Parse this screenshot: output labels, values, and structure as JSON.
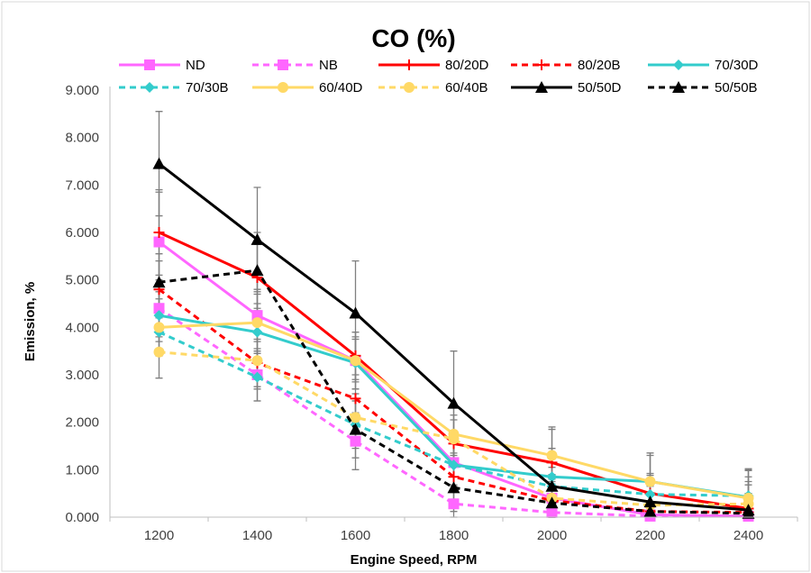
{
  "chart_data": {
    "type": "line",
    "title": "CO (%)",
    "xlabel": "Engine Speed, RPM",
    "ylabel": "Emission, %",
    "categories": [
      "1200",
      "1400",
      "1600",
      "1800",
      "2000",
      "2200",
      "2400"
    ],
    "y_tick_labels": [
      "0.000",
      "1.000",
      "2.000",
      "3.000",
      "4.000",
      "5.000",
      "6.000",
      "7.000",
      "8.000",
      "9.000"
    ],
    "ylim": [
      0,
      9
    ],
    "grid": false,
    "legend_position": "top",
    "error_bars": true,
    "series": [
      {
        "name": "ND",
        "color": "#FF66FF",
        "dash": "solid",
        "marker": "square",
        "values": [
          5.8,
          4.25,
          3.3,
          1.15,
          0.4,
          0.05,
          0.02
        ],
        "errors": [
          1.05,
          0.55,
          0.45,
          0.5,
          0.5,
          0.4,
          0.4
        ]
      },
      {
        "name": "NB",
        "color": "#FF66FF",
        "dash": "dashed",
        "marker": "square",
        "values": [
          4.4,
          3.0,
          1.6,
          0.28,
          0.1,
          0.02,
          0.02
        ],
        "errors": [
          0.6,
          0.55,
          0.6,
          0.4,
          0.3,
          0.3,
          0.3
        ]
      },
      {
        "name": "80/20D",
        "color": "#FF0000",
        "dash": "solid",
        "marker": "plus",
        "values": [
          6.0,
          5.05,
          3.4,
          1.55,
          1.15,
          0.5,
          0.18
        ],
        "errors": [
          0.9,
          0.7,
          0.5,
          0.5,
          0.7,
          0.8,
          0.8
        ]
      },
      {
        "name": "80/20B",
        "color": "#FF0000",
        "dash": "dashed",
        "marker": "plus",
        "values": [
          4.8,
          3.25,
          2.5,
          0.85,
          0.35,
          0.12,
          0.1
        ],
        "errors": [
          0.6,
          0.5,
          0.5,
          0.5,
          0.4,
          0.4,
          0.4
        ]
      },
      {
        "name": "70/30D",
        "color": "#33CCCC",
        "dash": "solid",
        "marker": "diamond",
        "values": [
          4.25,
          3.9,
          3.25,
          1.1,
          0.85,
          0.75,
          0.42
        ],
        "errors": [
          0.55,
          0.6,
          0.55,
          0.5,
          0.6,
          0.6,
          0.6
        ]
      },
      {
        "name": "70/30B",
        "color": "#33CCCC",
        "dash": "dashed",
        "marker": "diamond",
        "values": [
          3.9,
          2.95,
          1.95,
          1.1,
          0.65,
          0.48,
          0.45
        ],
        "errors": [
          0.5,
          0.5,
          0.5,
          0.5,
          0.4,
          0.4,
          0.4
        ]
      },
      {
        "name": "60/40D",
        "color": "#FFD966",
        "dash": "solid",
        "marker": "circle",
        "values": [
          4.0,
          4.1,
          3.3,
          1.75,
          1.3,
          0.75,
          0.4
        ],
        "errors": [
          0.6,
          0.6,
          0.6,
          0.6,
          0.6,
          0.6,
          0.6
        ]
      },
      {
        "name": "60/40B",
        "color": "#FFD966",
        "dash": "dashed",
        "marker": "circle",
        "values": [
          3.48,
          3.3,
          2.1,
          1.65,
          0.4,
          0.25,
          0.28
        ],
        "errors": [
          0.55,
          0.6,
          0.5,
          0.5,
          0.4,
          0.4,
          0.4
        ]
      },
      {
        "name": "50/50D",
        "color": "#000000",
        "dash": "solid",
        "marker": "triangle",
        "values": [
          7.45,
          5.85,
          4.3,
          2.4,
          0.65,
          0.32,
          0.15
        ],
        "errors": [
          1.1,
          1.1,
          1.1,
          1.1,
          0.8,
          0.6,
          0.6
        ]
      },
      {
        "name": "50/50B",
        "color": "#000000",
        "dash": "dashed",
        "marker": "triangle",
        "values": [
          4.95,
          5.2,
          1.85,
          0.62,
          0.3,
          0.12,
          0.08
        ],
        "errors": [
          0.6,
          0.8,
          0.6,
          0.5,
          0.4,
          0.4,
          0.4
        ]
      }
    ]
  }
}
